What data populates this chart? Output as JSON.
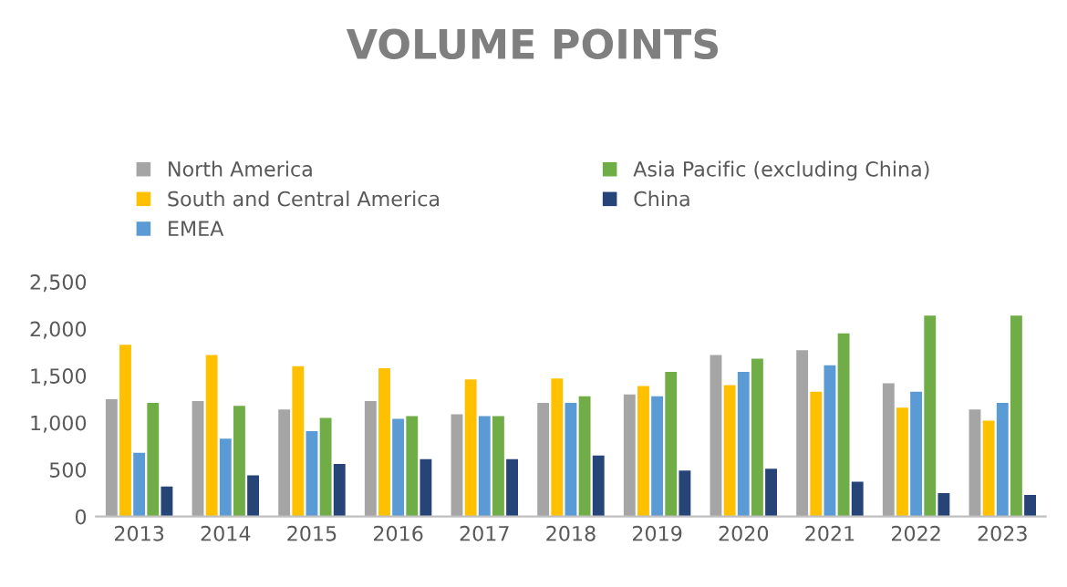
{
  "chart_data": {
    "type": "bar",
    "title": "VOLUME POINTS",
    "categories": [
      "2013",
      "2014",
      "2015",
      "2016",
      "2017",
      "2018",
      "2019",
      "2020",
      "2021",
      "2022",
      "2023"
    ],
    "series": [
      {
        "name": "North America",
        "color": "#a5a5a5",
        "values": [
          1250,
          1230,
          1140,
          1230,
          1090,
          1210,
          1300,
          1720,
          1770,
          1420,
          1140
        ]
      },
      {
        "name": "South and Central America",
        "color": "#ffc000",
        "values": [
          1830,
          1720,
          1600,
          1580,
          1460,
          1470,
          1390,
          1400,
          1330,
          1160,
          1020
        ]
      },
      {
        "name": "EMEA",
        "color": "#5b9bd5",
        "values": [
          680,
          830,
          910,
          1040,
          1070,
          1210,
          1280,
          1540,
          1610,
          1330,
          1210
        ]
      },
      {
        "name": "Asia Pacific (excluding China)",
        "color": "#70ad47",
        "values": [
          1210,
          1180,
          1050,
          1070,
          1070,
          1280,
          1540,
          1680,
          1950,
          2140,
          2140
        ]
      },
      {
        "name": "China",
        "color": "#264478",
        "values": [
          320,
          440,
          560,
          610,
          610,
          650,
          490,
          510,
          370,
          250,
          230
        ]
      }
    ],
    "ylim": [
      0,
      2500
    ],
    "yticks": [
      0,
      {
        "value": 500,
        "label": "500"
      },
      {
        "value": 1000,
        "label": "1,000"
      },
      {
        "value": 1500,
        "label": "1,500"
      },
      {
        "value": 2000,
        "label": "2,000"
      },
      {
        "value": 2500,
        "label": "2,500"
      }
    ],
    "grid": false,
    "legend": "top"
  }
}
